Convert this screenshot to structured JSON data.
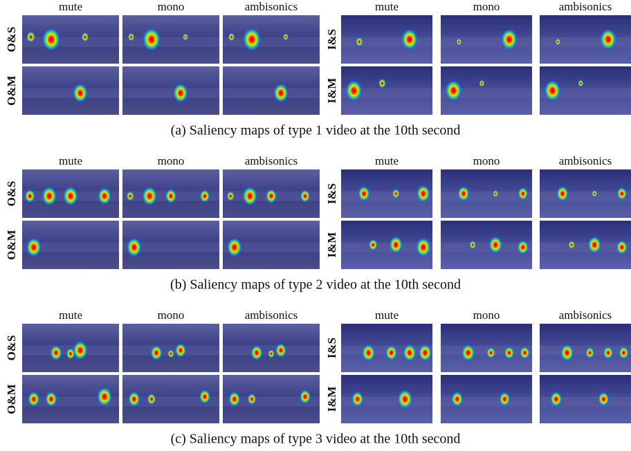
{
  "groups": [
    {
      "caption": "(a) Saliency maps of type 1 video at the 10th second",
      "panels": [
        {
          "columns": [
            "mute",
            "mono",
            "ambisonics"
          ],
          "rows": [
            "O&S",
            "O&M"
          ]
        },
        {
          "columns": [
            "mute",
            "mono",
            "ambisonics"
          ],
          "rows": [
            "I&S",
            "I&M"
          ]
        }
      ]
    },
    {
      "caption": "(b) Saliency maps of type 2 video at the 10th second",
      "panels": [
        {
          "columns": [
            "mute",
            "mono",
            "ambisonics"
          ],
          "rows": [
            "O&S",
            "O&M"
          ]
        },
        {
          "columns": [
            "mute",
            "mono",
            "ambisonics"
          ],
          "rows": [
            "I&S",
            "I&M"
          ]
        }
      ]
    },
    {
      "caption": "(c) Saliency maps of type 3 video at the 10th second",
      "panels": [
        {
          "columns": [
            "mute",
            "mono",
            "ambisonics"
          ],
          "rows": [
            "O&S",
            "O&M"
          ]
        },
        {
          "columns": [
            "mute",
            "mono",
            "ambisonics"
          ],
          "rows": [
            "I&S",
            "I&M"
          ]
        }
      ]
    }
  ]
}
